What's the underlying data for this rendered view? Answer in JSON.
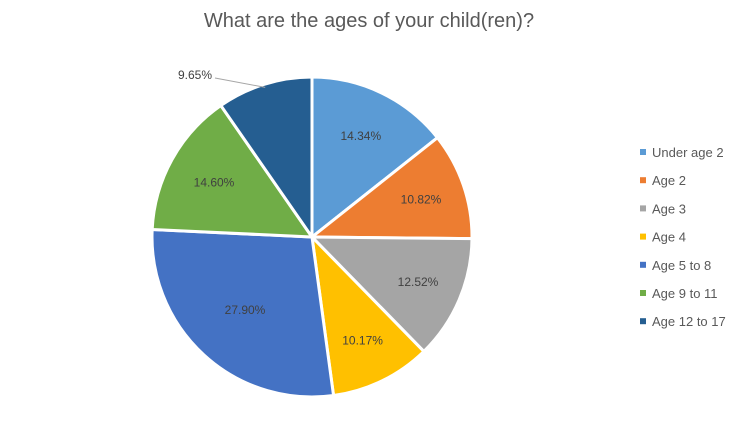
{
  "chart_data": {
    "type": "pie",
    "title": "What are the ages of your child(ren)?",
    "categories": [
      "Under age 2",
      "Age 2",
      "Age 3",
      "Age 4",
      "Age 5 to 8",
      "Age 9 to 11",
      "Age 12 to 17"
    ],
    "values": [
      14.34,
      10.82,
      12.52,
      10.17,
      27.9,
      14.6,
      9.65
    ],
    "labels": [
      "14.34%",
      "10.82%",
      "12.52%",
      "10.17%",
      "27.90%",
      "14.60%",
      "9.65%"
    ],
    "colors": [
      "#5B9BD5",
      "#ED7D31",
      "#A5A5A5",
      "#FFC000",
      "#4472C4",
      "#70AD47",
      "#255E91"
    ],
    "legend_position": "right",
    "start_angle": "12 o'clock, clockwise"
  }
}
